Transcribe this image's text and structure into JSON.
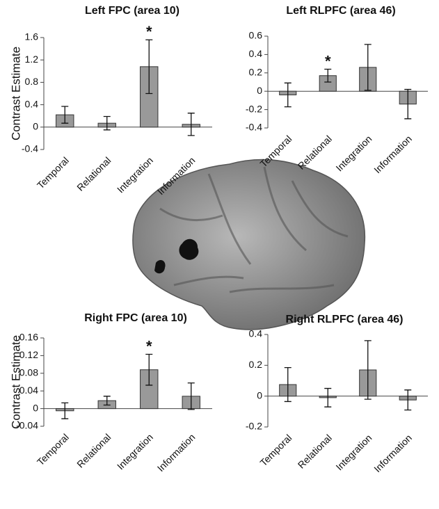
{
  "chart_data": [
    {
      "type": "bar",
      "title": "Left FPC (area 10)",
      "ylabel": "Contrast Estimate",
      "categories": [
        "Temporal",
        "Relational",
        "Integration",
        "Information"
      ],
      "values": [
        0.22,
        0.07,
        1.08,
        0.05
      ],
      "errors": [
        0.15,
        0.12,
        0.48,
        0.2
      ],
      "value_annotations": [
        null,
        null,
        "*",
        null
      ],
      "color": "#999999",
      "ylim": [
        -0.4,
        1.6
      ],
      "yticks": [
        -0.4,
        0,
        0.4,
        0.8,
        1.2,
        1.6
      ]
    },
    {
      "type": "bar",
      "title": "Left RLPFC (area 46)",
      "categories": [
        "Temporal",
        "Relational",
        "Integration",
        "Information"
      ],
      "values": [
        -0.04,
        0.17,
        0.26,
        -0.14
      ],
      "errors": [
        0.13,
        0.07,
        0.25,
        0.16
      ],
      "value_annotations": [
        null,
        "*",
        null,
        null
      ],
      "color": "#999999",
      "ylim": [
        -0.4,
        0.6
      ],
      "yticks": [
        -0.4,
        -0.2,
        0,
        0.2,
        0.4,
        0.6
      ]
    },
    {
      "type": "bar",
      "title": "Right FPC (area 10)",
      "ylabel": "Contrast Estimate",
      "categories": [
        "Temporal",
        "Relational",
        "Integration",
        "Information"
      ],
      "values": [
        -0.005,
        0.018,
        0.088,
        0.028
      ],
      "errors": [
        0.018,
        0.01,
        0.035,
        0.03
      ],
      "value_annotations": [
        null,
        null,
        "*",
        null
      ],
      "color": "#999999",
      "ylim": [
        -0.04,
        0.16
      ],
      "yticks": [
        -0.04,
        0,
        0.04,
        0.08,
        0.12,
        0.16
      ]
    },
    {
      "type": "bar",
      "title": "Right RLPFC (area 46)",
      "categories": [
        "Temporal",
        "Relational",
        "Integration",
        "Information"
      ],
      "values": [
        0.075,
        -0.01,
        0.17,
        -0.025
      ],
      "errors": [
        0.11,
        0.06,
        0.19,
        0.065
      ],
      "value_annotations": [
        null,
        null,
        null,
        null
      ],
      "color": "#999999",
      "ylim": [
        -0.2,
        0.4
      ],
      "yticks": [
        -0.2,
        0,
        0.2,
        0.4
      ]
    }
  ]
}
